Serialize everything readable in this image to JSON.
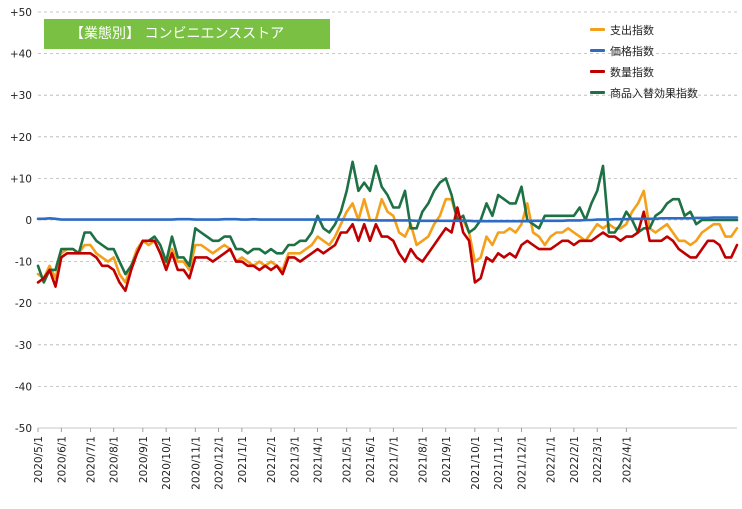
{
  "title": "【業態別】 コンビニエンスストア",
  "chart_data": {
    "type": "line",
    "title": "【業態別】 コンビニエンスストア",
    "xlabel": "",
    "ylabel": "",
    "ylim": [
      -50,
      50
    ],
    "y_ticks": [
      50,
      40,
      30,
      20,
      10,
      0,
      -10,
      -20,
      -30,
      -40,
      -50
    ],
    "y_tick_labels": [
      "+50",
      "+40",
      "+30",
      "+20",
      "+10",
      "0",
      "-10",
      "-20",
      "-30",
      "-40",
      "-50"
    ],
    "grid": "horizontal dashed",
    "legend_position": "top-right",
    "x_tick_labels": [
      "2020/5/1",
      "2020/6/1",
      "2020/7/1",
      "2020/8/1",
      "2020/9/1",
      "2020/10/1",
      "2020/11/1",
      "2020/12/1",
      "2021/1/1",
      "2021/2/1",
      "2021/3/1",
      "2021/4/1",
      "2021/5/1",
      "2021/6/1",
      "2021/7/1",
      "2021/8/1",
      "2021/9/1",
      "2021/10/1",
      "2021/11/1",
      "2021/12/1",
      "2022/1/1",
      "2022/2/1",
      "2022/3/1",
      "2022/4/1"
    ],
    "x_tick_index": [
      0,
      4,
      9,
      13,
      18,
      22,
      27,
      31,
      35,
      40,
      44,
      48,
      53,
      57,
      61,
      66,
      70,
      75,
      79,
      83,
      88,
      92,
      96,
      101
    ],
    "series": [
      {
        "name": "支出指数",
        "color": "#f5a01a",
        "values": [
          -13,
          -14,
          -11,
          -14,
          -8,
          -7,
          -7,
          -8,
          -6,
          -6,
          -8,
          -9,
          -10,
          -9,
          -13,
          -15,
          -11,
          -7,
          -5,
          -6,
          -5,
          -8,
          -11,
          -7,
          -10,
          -10,
          -12,
          -6,
          -6,
          -7,
          -8,
          -7,
          -6,
          -7,
          -10,
          -9,
          -10,
          -11,
          -10,
          -11,
          -10,
          -11,
          -12,
          -8,
          -8,
          -8,
          -7,
          -6,
          -4,
          -5,
          -6,
          -4,
          -1,
          2,
          4,
          0,
          5,
          0,
          0,
          5,
          2,
          1,
          -3,
          -4,
          -1,
          -6,
          -5,
          -4,
          -1,
          1,
          5,
          5,
          0,
          0,
          -3,
          -10,
          -9,
          -4,
          -6,
          -3,
          -3,
          -2,
          -3,
          -1,
          4,
          -3,
          -4,
          -6,
          -4,
          -3,
          -3,
          -2,
          -3,
          -4,
          -5,
          -3,
          -1,
          -2,
          -1,
          -2,
          -2,
          -1,
          2,
          4,
          7,
          -2,
          -3,
          -2,
          -1,
          -3,
          -5,
          -5,
          -6,
          -5,
          -3,
          -2,
          -1,
          -1,
          -4,
          -4,
          -2
        ]
      },
      {
        "name": "価格指数",
        "color": "#2e6bc4",
        "values": [
          0.3,
          0.3,
          0.4,
          0.3,
          0.1,
          0.1,
          0.1,
          0.1,
          0.1,
          0.1,
          0.1,
          0.1,
          0.1,
          0.1,
          0.1,
          0.1,
          0.1,
          0.1,
          0.1,
          0.1,
          0.1,
          0.1,
          0.1,
          0.1,
          0.2,
          0.2,
          0.2,
          0.1,
          0.1,
          0.1,
          0.1,
          0.1,
          0.2,
          0.2,
          0.2,
          0.1,
          0.1,
          0.2,
          0.1,
          0.1,
          0.1,
          0.1,
          0.1,
          0.1,
          0.1,
          0.1,
          0.1,
          0.1,
          0.1,
          0.1,
          0.1,
          0.1,
          0.1,
          0.1,
          0.1,
          0.0,
          0.0,
          -0.1,
          -0.1,
          -0.1,
          -0.1,
          -0.1,
          -0.1,
          -0.1,
          -0.1,
          -0.2,
          -0.2,
          -0.2,
          -0.2,
          -0.2,
          -0.2,
          -0.2,
          -0.2,
          -0.2,
          -0.2,
          -0.3,
          -0.3,
          -0.3,
          -0.3,
          -0.3,
          -0.3,
          -0.3,
          -0.3,
          -0.3,
          -0.3,
          -0.2,
          -0.2,
          -0.2,
          -0.2,
          -0.2,
          -0.2,
          -0.1,
          -0.1,
          -0.1,
          0.0,
          0.0,
          0.1,
          0.1,
          0.1,
          0.2,
          0.2,
          0.2,
          0.3,
          0.3,
          0.3,
          0.3,
          0.3,
          0.4,
          0.4,
          0.4,
          0.4,
          0.4,
          0.4,
          0.5,
          0.5,
          0.5,
          0.6,
          0.6,
          0.6,
          0.6,
          0.6
        ]
      },
      {
        "name": "数量指数",
        "color": "#c00000",
        "values": [
          -15,
          -14,
          -12,
          -16,
          -9,
          -8,
          -8,
          -8,
          -8,
          -8,
          -9,
          -11,
          -11,
          -12,
          -15,
          -17,
          -12,
          -8,
          -5,
          -5,
          -5,
          -8,
          -12,
          -8,
          -12,
          -12,
          -14,
          -9,
          -9,
          -9,
          -10,
          -9,
          -8,
          -7,
          -10,
          -10,
          -11,
          -11,
          -12,
          -11,
          -12,
          -11,
          -13,
          -9,
          -9,
          -10,
          -9,
          -8,
          -7,
          -8,
          -7,
          -6,
          -3,
          -3,
          -1,
          -5,
          -1,
          -5,
          -1,
          -4,
          -4,
          -5,
          -8,
          -10,
          -7,
          -9,
          -10,
          -8,
          -6,
          -4,
          -2,
          -3,
          3,
          -3,
          -5,
          -15,
          -14,
          -9,
          -10,
          -8,
          -9,
          -8,
          -9,
          -6,
          -5,
          -6,
          -7,
          -7,
          -7,
          -6,
          -5,
          -5,
          -6,
          -5,
          -5,
          -5,
          -4,
          -3,
          -4,
          -4,
          -5,
          -4,
          -4,
          -3,
          2,
          -5,
          -5,
          -5,
          -4,
          -5,
          -7,
          -8,
          -9,
          -9,
          -7,
          -5,
          -5,
          -6,
          -9,
          -9,
          -6
        ]
      },
      {
        "name": "商品入替効果指数",
        "color": "#1e7145",
        "values": [
          -11,
          -15,
          -12,
          -12,
          -7,
          -7,
          -7,
          -8,
          -3,
          -3,
          -5,
          -6,
          -7,
          -7,
          -10,
          -13,
          -11,
          -8,
          -5,
          -5,
          -4,
          -6,
          -10,
          -4,
          -9,
          -9,
          -11,
          -2,
          -3,
          -4,
          -5,
          -5,
          -4,
          -4,
          -7,
          -7,
          -8,
          -7,
          -7,
          -8,
          -7,
          -8,
          -8,
          -6,
          -6,
          -5,
          -5,
          -3,
          1,
          -2,
          -3,
          -1,
          2,
          7,
          14,
          7,
          9,
          7,
          13,
          8,
          6,
          3,
          3,
          7,
          -2,
          -2,
          2,
          4,
          7,
          9,
          10,
          6,
          0,
          1,
          -3,
          -2,
          0,
          4,
          1,
          6,
          5,
          4,
          4,
          8,
          0,
          -1,
          -2,
          1,
          1,
          1,
          1,
          1,
          1,
          3,
          0,
          4,
          7,
          13,
          -3,
          -3,
          -1,
          2,
          0,
          -3,
          -2,
          -2,
          1,
          2,
          4,
          5,
          5,
          1,
          2,
          -1,
          0,
          0,
          0,
          0,
          0,
          0,
          0
        ]
      }
    ]
  }
}
